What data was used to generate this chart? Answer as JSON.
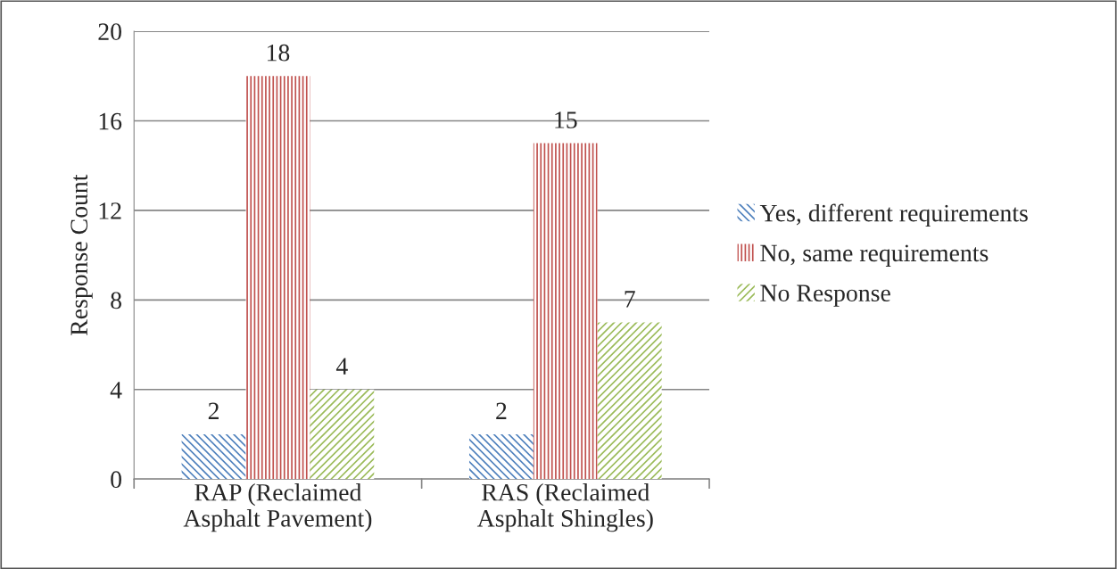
{
  "chart_data": {
    "type": "bar",
    "ylabel": "Response Count",
    "categories": [
      "RAP (Reclaimed Asphalt Pavement)",
      "RAS (Reclaimed Asphalt Shingles)"
    ],
    "series": [
      {
        "name": "Yes, different requirements",
        "color": "#4f81bd",
        "values": [
          2,
          2
        ]
      },
      {
        "name": "No, same requirements",
        "color": "#c0504d",
        "values": [
          18,
          15
        ]
      },
      {
        "name": "No Response",
        "color": "#9bbb59",
        "values": [
          4,
          7
        ]
      }
    ],
    "ylim": [
      0,
      20
    ],
    "yticks": [
      0,
      4,
      8,
      12,
      16,
      20
    ],
    "grid": "y",
    "legend": "right",
    "data_labels": true
  }
}
